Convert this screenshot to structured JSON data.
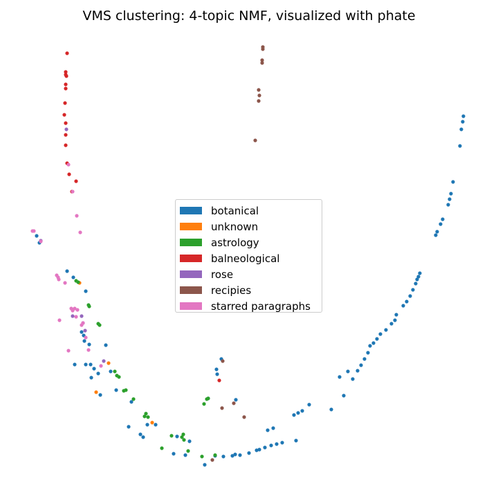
{
  "chart_data": {
    "type": "scatter",
    "title": "VMS clustering: 4-topic NMF, visualized with phate",
    "xlabel": "",
    "ylabel": "",
    "axes_visible": false,
    "grid": false,
    "legend_position": "center",
    "series": [
      {
        "name": "botanical",
        "color": "#1f77b4",
        "points": [
          [
            670,
            168
          ],
          [
            669,
            176
          ],
          [
            667,
            187
          ],
          [
            665,
            211
          ],
          [
            655,
            263
          ],
          [
            652,
            280
          ],
          [
            650,
            288
          ],
          [
            648,
            296
          ],
          [
            640,
            317
          ],
          [
            637,
            324
          ],
          [
            632,
            335
          ],
          [
            630,
            340
          ],
          [
            607,
            395
          ],
          [
            605,
            400
          ],
          [
            603,
            404
          ],
          [
            601,
            410
          ],
          [
            597,
            419
          ],
          [
            593,
            428
          ],
          [
            588,
            436
          ],
          [
            583,
            442
          ],
          [
            573,
            455
          ],
          [
            571,
            463
          ],
          [
            566,
            468
          ],
          [
            558,
            477
          ],
          [
            550,
            483
          ],
          [
            545,
            490
          ],
          [
            540,
            496
          ],
          [
            535,
            500
          ],
          [
            532,
            510
          ],
          [
            527,
            519
          ],
          [
            522,
            528
          ],
          [
            517,
            536
          ],
          [
            510,
            548
          ],
          [
            503,
            537
          ],
          [
            497,
            572
          ],
          [
            491,
            545
          ],
          [
            479,
            592
          ],
          [
            447,
            585
          ],
          [
            437,
            594
          ],
          [
            431,
            597
          ],
          [
            425,
            600
          ],
          [
            395,
            619
          ],
          [
            387,
            622
          ],
          [
            428,
            637
          ],
          [
            408,
            640
          ],
          [
            400,
            642
          ],
          [
            392,
            644
          ],
          [
            383,
            647
          ],
          [
            375,
            650
          ],
          [
            371,
            651
          ],
          [
            360,
            655
          ],
          [
            347,
            658
          ],
          [
            340,
            657
          ],
          [
            336,
            659
          ],
          [
            323,
            660
          ],
          [
            311,
            659
          ],
          [
            296,
            672
          ],
          [
            274,
            638
          ],
          [
            268,
            658
          ],
          [
            256,
            631
          ],
          [
            251,
            656
          ],
          [
            225,
            614
          ],
          [
            213,
            614
          ],
          [
            207,
            632
          ],
          [
            203,
            628
          ],
          [
            190,
            581
          ],
          [
            186,
            617
          ],
          [
            168,
            564
          ],
          [
            160,
            537
          ],
          [
            153,
            499
          ],
          [
            145,
            571
          ],
          [
            142,
            540
          ],
          [
            132,
            546
          ],
          [
            136,
            533
          ],
          [
            131,
            527
          ],
          [
            124,
            527
          ],
          [
            118,
            480
          ],
          [
            121,
            485
          ],
          [
            122,
            493
          ],
          [
            129,
            498
          ],
          [
            108,
            527
          ],
          [
            124,
            421
          ],
          [
            106,
            401
          ],
          [
            97,
            392
          ],
          [
            57,
            351
          ],
          [
            53,
            341
          ],
          [
            313,
            534
          ],
          [
            314,
            541
          ],
          [
            320,
            519
          ],
          [
            341,
            578
          ],
          [
            301,
            576
          ]
        ]
      },
      {
        "name": "unknown",
        "color": "#ff7f0e",
        "points": [
          [
            115,
            409
          ],
          [
            157,
            525
          ],
          [
            139,
            567
          ],
          [
            220,
            611
          ]
        ]
      },
      {
        "name": "astrology",
        "color": "#2ca02c",
        "points": [
          [
            110,
            406
          ],
          [
            113,
            408
          ],
          [
            128,
            441
          ],
          [
            129,
            443
          ],
          [
            142,
            468
          ],
          [
            144,
            470
          ],
          [
            166,
            537
          ],
          [
            169,
            543
          ],
          [
            172,
            545
          ],
          [
            179,
            565
          ],
          [
            182,
            564
          ],
          [
            193,
            577
          ],
          [
            211,
            598
          ],
          [
            209,
            602
          ],
          [
            214,
            603
          ],
          [
            234,
            648
          ],
          [
            248,
            630
          ],
          [
            263,
            632
          ],
          [
            266,
            636
          ],
          [
            272,
            652
          ],
          [
            292,
            660
          ],
          [
            311,
            658
          ],
          [
            299,
            577
          ],
          [
            301,
            576
          ],
          [
            295,
            584
          ],
          [
            265,
            628
          ]
        ]
      },
      {
        "name": "balneological",
        "color": "#d62728",
        "points": [
          [
            97,
            77
          ],
          [
            95,
            104
          ],
          [
            95,
            108
          ],
          [
            96,
            110
          ],
          [
            95,
            122
          ],
          [
            95,
            128
          ],
          [
            94,
            149
          ],
          [
            93,
            166
          ],
          [
            95,
            178
          ],
          [
            95,
            195
          ],
          [
            95,
            210
          ],
          [
            97,
            236
          ],
          [
            100,
            252
          ],
          [
            110,
            262
          ],
          [
            104,
            277
          ],
          [
            317,
            550
          ]
        ]
      },
      {
        "name": "rose",
        "color": "#9467bd",
        "points": [
          [
            96,
            187
          ],
          [
            118,
            457
          ],
          [
            120,
            467
          ],
          [
            123,
            478
          ],
          [
            150,
            522
          ],
          [
            105,
            457
          ],
          [
            59,
            348
          ]
        ]
      },
      {
        "name": "recipies",
        "color": "#8c564b",
        "points": [
          [
            380,
            68
          ],
          [
            380,
            71
          ],
          [
            379,
            87
          ],
          [
            379,
            91
          ],
          [
            374,
            130
          ],
          [
            375,
            138
          ],
          [
            374,
            146
          ],
          [
            369,
            203
          ],
          [
            322,
            522
          ],
          [
            321,
            590
          ],
          [
            338,
            583
          ],
          [
            353,
            603
          ],
          [
            307,
            665
          ]
        ]
      },
      {
        "name": "starred paragraphs",
        "color": "#e377c2",
        "points": [
          [
            99,
            238
          ],
          [
            105,
            277
          ],
          [
            111,
            312
          ],
          [
            116,
            336
          ],
          [
            47,
            334
          ],
          [
            49,
            334
          ],
          [
            59,
            349
          ],
          [
            82,
            398
          ],
          [
            84,
            401
          ],
          [
            85,
            404
          ],
          [
            94,
            409
          ],
          [
            103,
            446
          ],
          [
            108,
            446
          ],
          [
            105,
            449
          ],
          [
            112,
            448
          ],
          [
            86,
            463
          ],
          [
            110,
            458
          ],
          [
            118,
            470
          ],
          [
            120,
            467
          ],
          [
            124,
            488
          ],
          [
            128,
            506
          ],
          [
            99,
            507
          ],
          [
            146,
            529
          ]
        ]
      }
    ]
  }
}
